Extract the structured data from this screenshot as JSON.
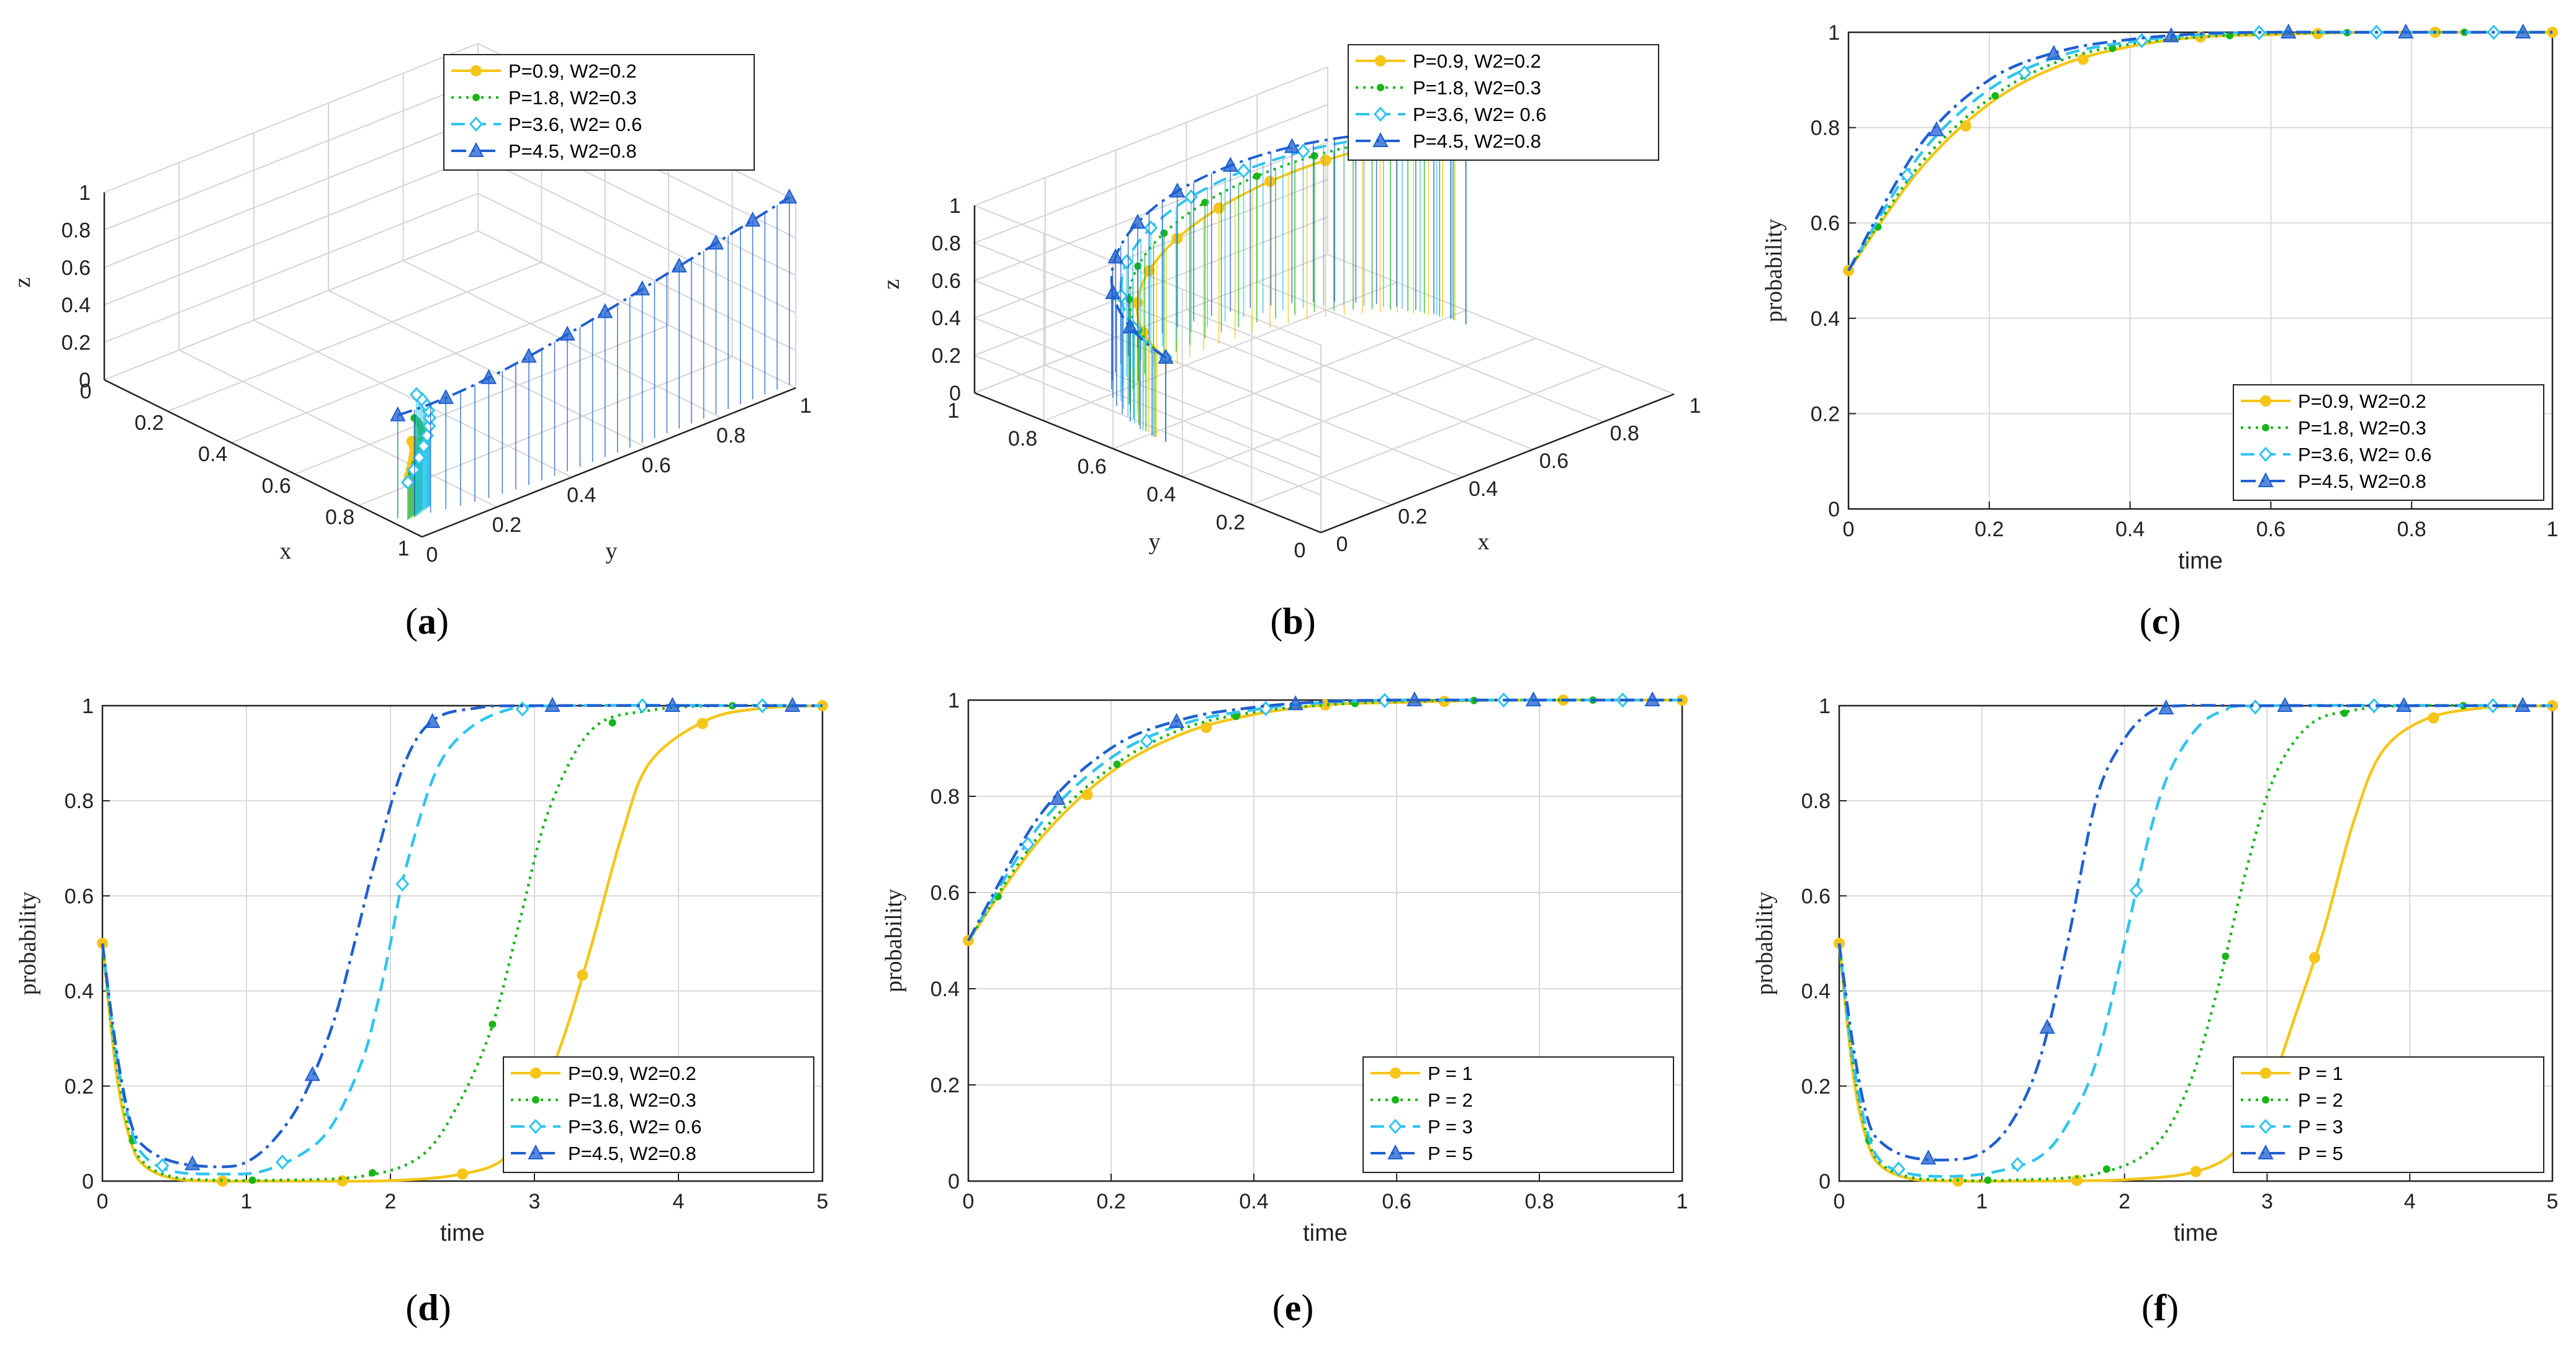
{
  "colors": {
    "p1": "#F5C518",
    "p2": "#18B618",
    "p3": "#2EC4F0",
    "p4": "#1F5FD0"
  },
  "chart_data": [
    {
      "id": "a",
      "type": "line3d",
      "caption": "a",
      "xlabel": "x",
      "ylabel": "y",
      "zlabel": "z",
      "xticks": [
        "0",
        "0.2",
        "0.4",
        "0.6",
        "0.8",
        "1"
      ],
      "yticks": [
        "0",
        "0.2",
        "0.4",
        "0.6",
        "0.8",
        "1"
      ],
      "zticks": [
        "0",
        "0.2",
        "0.4",
        "0.6",
        "0.8",
        "1"
      ],
      "legend": [
        "P=0.9, W2=0.2",
        "P=1.8, W2=0.3",
        "P=3.6, W2= 0.6",
        "P=4.5, W2=0.8"
      ],
      "legend_position": "top-right"
    },
    {
      "id": "b",
      "type": "line3d",
      "caption": "b",
      "xlabel": "x",
      "ylabel": "y",
      "zlabel": "z",
      "xticks": [
        "0",
        "0.2",
        "0.4",
        "0.6",
        "0.8",
        "1"
      ],
      "yticks": [
        "0",
        "0.2",
        "0.4",
        "0.6",
        "0.8",
        "1"
      ],
      "zticks": [
        "0",
        "0.2",
        "0.4",
        "0.6",
        "0.8",
        "1"
      ],
      "legend": [
        "P=0.9, W2=0.2",
        "P=1.8, W2=0.3",
        "P=3.6, W2= 0.6",
        "P=4.5, W2=0.8"
      ],
      "legend_position": "top-right"
    },
    {
      "id": "c",
      "type": "line",
      "caption": "c",
      "xlabel": "time",
      "ylabel": "probability",
      "xlim": [
        0,
        1
      ],
      "ylim": [
        0,
        1
      ],
      "xticks": [
        "0",
        "0.2",
        "0.4",
        "0.6",
        "0.8",
        "1"
      ],
      "yticks": [
        "0",
        "0.2",
        "0.4",
        "0.6",
        "0.8",
        "1"
      ],
      "legend_position": "bottom-right",
      "series": [
        {
          "name": "P=0.9, W2=0.2",
          "x": [
            0,
            0.1,
            0.2,
            0.3,
            0.4,
            0.5,
            0.6,
            0.75,
            1
          ],
          "y": [
            0.5,
            0.71,
            0.85,
            0.93,
            0.97,
            0.99,
            0.995,
            1,
            1
          ]
        },
        {
          "name": "P=1.8, W2=0.3",
          "x": [
            0,
            0.1,
            0.2,
            0.3,
            0.4,
            0.5,
            0.6,
            0.75,
            1
          ],
          "y": [
            0.5,
            0.72,
            0.86,
            0.94,
            0.975,
            0.99,
            0.997,
            1,
            1
          ]
        },
        {
          "name": "P=3.6, W2= 0.6",
          "x": [
            0,
            0.1,
            0.2,
            0.3,
            0.4,
            0.5,
            0.6,
            0.75,
            1
          ],
          "y": [
            0.5,
            0.74,
            0.88,
            0.95,
            0.98,
            0.995,
            1,
            1,
            1
          ]
        },
        {
          "name": "P=4.5, W2=0.8",
          "x": [
            0,
            0.1,
            0.2,
            0.3,
            0.4,
            0.5,
            0.6,
            0.75,
            1
          ],
          "y": [
            0.5,
            0.76,
            0.9,
            0.96,
            0.985,
            0.997,
            1,
            1,
            1
          ]
        }
      ]
    },
    {
      "id": "d",
      "type": "line",
      "caption": "d",
      "xlabel": "time",
      "ylabel": "probability",
      "xlim": [
        0,
        5
      ],
      "ylim": [
        0,
        1
      ],
      "xticks": [
        "0",
        "1",
        "2",
        "3",
        "4",
        "5"
      ],
      "yticks": [
        "0",
        "0.2",
        "0.4",
        "0.6",
        "0.8",
        "1"
      ],
      "legend_position": "bottom-right",
      "series": [
        {
          "name": "P=0.9, W2=0.2",
          "x": [
            0,
            0.1,
            0.2,
            0.3,
            0.5,
            0.8,
            1.3,
            2,
            2.5,
            2.8,
            3.0,
            3.2,
            3.4,
            3.6,
            3.8,
            4.2,
            4.6,
            5
          ],
          "y": [
            0.5,
            0.22,
            0.08,
            0.03,
            0.005,
            0.0,
            0.0,
            0.001,
            0.015,
            0.05,
            0.15,
            0.3,
            0.5,
            0.72,
            0.88,
            0.97,
            0.995,
            1
          ]
        },
        {
          "name": "P=1.8, W2=0.3",
          "x": [
            0,
            0.1,
            0.2,
            0.3,
            0.5,
            0.8,
            1.2,
            1.8,
            2.2,
            2.45,
            2.7,
            2.9,
            3.1,
            3.4,
            3.8,
            4.3,
            5
          ],
          "y": [
            0.5,
            0.24,
            0.09,
            0.035,
            0.008,
            0.002,
            0.002,
            0.01,
            0.05,
            0.15,
            0.32,
            0.55,
            0.78,
            0.95,
            0.99,
            1,
            1
          ]
        },
        {
          "name": "P=3.6, W2= 0.6",
          "x": [
            0,
            0.1,
            0.2,
            0.3,
            0.5,
            0.8,
            1.1,
            1.4,
            1.6,
            1.8,
            1.9,
            2.0,
            2.1,
            2.3,
            2.5,
            2.8,
            3.2,
            5
          ],
          "y": [
            0.5,
            0.26,
            0.11,
            0.05,
            0.02,
            0.015,
            0.02,
            0.06,
            0.12,
            0.25,
            0.36,
            0.5,
            0.65,
            0.85,
            0.94,
            0.99,
            1,
            1
          ]
        },
        {
          "name": "P=4.5, W2=0.8",
          "x": [
            0,
            0.1,
            0.2,
            0.3,
            0.5,
            0.8,
            1.0,
            1.2,
            1.4,
            1.6,
            1.75,
            1.9,
            2.1,
            2.3,
            2.6,
            3,
            5
          ],
          "y": [
            0.5,
            0.27,
            0.12,
            0.07,
            0.04,
            0.03,
            0.04,
            0.09,
            0.18,
            0.33,
            0.5,
            0.68,
            0.88,
            0.97,
            0.995,
            1,
            1
          ]
        }
      ]
    },
    {
      "id": "e",
      "type": "line",
      "caption": "e",
      "xlabel": "time",
      "ylabel": "probability",
      "xlim": [
        0,
        1
      ],
      "ylim": [
        0,
        1
      ],
      "xticks": [
        "0",
        "0.2",
        "0.4",
        "0.6",
        "0.8",
        "1"
      ],
      "yticks": [
        "0",
        "0.2",
        "0.4",
        "0.6",
        "0.8",
        "1"
      ],
      "legend_position": "bottom-right",
      "series": [
        {
          "name": "P = 1",
          "x": [
            0,
            0.1,
            0.2,
            0.3,
            0.4,
            0.5,
            0.6,
            0.75,
            1
          ],
          "y": [
            0.5,
            0.71,
            0.85,
            0.93,
            0.97,
            0.99,
            0.995,
            1,
            1
          ]
        },
        {
          "name": "P = 2",
          "x": [
            0,
            0.1,
            0.2,
            0.3,
            0.4,
            0.5,
            0.6,
            0.75,
            1
          ],
          "y": [
            0.5,
            0.72,
            0.86,
            0.94,
            0.975,
            0.99,
            0.997,
            1,
            1
          ]
        },
        {
          "name": "P = 3",
          "x": [
            0,
            0.1,
            0.2,
            0.3,
            0.4,
            0.5,
            0.6,
            0.75,
            1
          ],
          "y": [
            0.5,
            0.74,
            0.88,
            0.95,
            0.98,
            0.995,
            1,
            1,
            1
          ]
        },
        {
          "name": "P = 5",
          "x": [
            0,
            0.1,
            0.2,
            0.3,
            0.4,
            0.5,
            0.6,
            0.75,
            1
          ],
          "y": [
            0.5,
            0.76,
            0.9,
            0.96,
            0.985,
            0.997,
            1,
            1,
            1
          ]
        }
      ]
    },
    {
      "id": "f",
      "type": "line",
      "caption": "f",
      "xlabel": "time",
      "ylabel": "probability",
      "xlim": [
        0,
        5
      ],
      "ylim": [
        0,
        1
      ],
      "xticks": [
        "0",
        "1",
        "2",
        "3",
        "4",
        "5"
      ],
      "yticks": [
        "0",
        "0.2",
        "0.4",
        "0.6",
        "0.8",
        "1"
      ],
      "legend_position": "bottom-right",
      "series": [
        {
          "name": "P = 1",
          "x": [
            0,
            0.1,
            0.2,
            0.3,
            0.5,
            0.8,
            1.3,
            2,
            2.5,
            2.8,
            3.0,
            3.2,
            3.4,
            3.6,
            3.8,
            4.1,
            4.5,
            5
          ],
          "y": [
            0.5,
            0.22,
            0.08,
            0.03,
            0.005,
            0.0,
            0.0,
            0.003,
            0.02,
            0.07,
            0.18,
            0.35,
            0.53,
            0.75,
            0.9,
            0.97,
            0.995,
            1
          ]
        },
        {
          "name": "P = 2",
          "x": [
            0,
            0.1,
            0.2,
            0.3,
            0.5,
            0.8,
            1.2,
            1.8,
            2.2,
            2.45,
            2.65,
            2.85,
            3.05,
            3.3,
            3.6,
            4,
            5
          ],
          "y": [
            0.5,
            0.24,
            0.09,
            0.035,
            0.008,
            0.002,
            0.002,
            0.015,
            0.07,
            0.2,
            0.4,
            0.65,
            0.85,
            0.96,
            0.99,
            1,
            1
          ]
        },
        {
          "name": "P = 3",
          "x": [
            0,
            0.1,
            0.2,
            0.3,
            0.5,
            0.8,
            1.1,
            1.4,
            1.6,
            1.8,
            2.0,
            2.15,
            2.3,
            2.5,
            2.7,
            3.0,
            5
          ],
          "y": [
            0.5,
            0.25,
            0.1,
            0.04,
            0.015,
            0.01,
            0.02,
            0.05,
            0.12,
            0.25,
            0.5,
            0.7,
            0.85,
            0.95,
            0.99,
            1,
            1
          ]
        },
        {
          "name": "P = 5",
          "x": [
            0,
            0.1,
            0.2,
            0.3,
            0.5,
            0.8,
            1.0,
            1.2,
            1.4,
            1.6,
            1.8,
            2.0,
            2.2,
            2.4,
            2.8,
            3.2,
            5
          ],
          "y": [
            0.5,
            0.28,
            0.13,
            0.08,
            0.05,
            0.045,
            0.06,
            0.12,
            0.25,
            0.5,
            0.8,
            0.93,
            0.99,
            1,
            1,
            1,
            1
          ]
        }
      ]
    }
  ]
}
